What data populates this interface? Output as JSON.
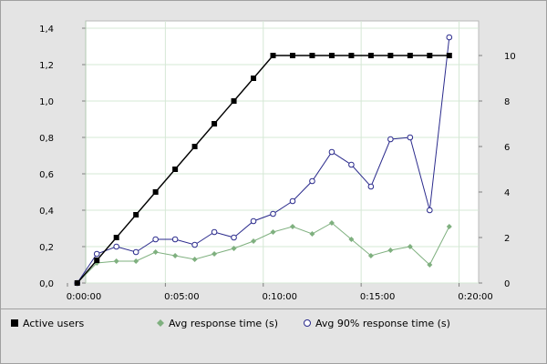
{
  "chart_data": {
    "type": "line",
    "title": "",
    "xlabel": "",
    "ylabel": "",
    "xlim": [
      0,
      1260
    ],
    "ylim": [
      0,
      1.4
    ],
    "y2lim": [
      0,
      10
    ],
    "grid": true,
    "legend_position": "bottom",
    "x_ticks": [
      {
        "value": 0,
        "label": "0:00:00"
      },
      {
        "value": 300,
        "label": "0:05:00"
      },
      {
        "value": 600,
        "label": "0:10:00"
      },
      {
        "value": 900,
        "label": "0:15:00"
      },
      {
        "value": 1200,
        "label": "0:20:00"
      }
    ],
    "y_ticks": [
      {
        "value": 0.0,
        "label": "0,0"
      },
      {
        "value": 0.2,
        "label": "0,2"
      },
      {
        "value": 0.4,
        "label": "0,4"
      },
      {
        "value": 0.6,
        "label": "0,6"
      },
      {
        "value": 0.8,
        "label": "0,8"
      },
      {
        "value": 1.0,
        "label": "1,0"
      },
      {
        "value": 1.2,
        "label": "1,2"
      },
      {
        "value": 1.4,
        "label": "1,4"
      }
    ],
    "y2_ticks": [
      {
        "value": 0,
        "label": "0"
      },
      {
        "value": 2,
        "label": "2"
      },
      {
        "value": 4,
        "label": "4"
      },
      {
        "value": 6,
        "label": "6"
      },
      {
        "value": 8,
        "label": "8"
      },
      {
        "value": 10,
        "label": "10"
      }
    ],
    "x": [
      30,
      90,
      150,
      210,
      270,
      330,
      390,
      450,
      510,
      570,
      630,
      690,
      750,
      810,
      870,
      930,
      990,
      1050,
      1110,
      1170
    ],
    "series": [
      {
        "name": "Active users",
        "axis": "right",
        "marker": "filled-square",
        "color": "#000000",
        "values": [
          0,
          1,
          2,
          3,
          4,
          5,
          6,
          7,
          8,
          9,
          10,
          10,
          10,
          10,
          10,
          10,
          10,
          10,
          10,
          10
        ]
      },
      {
        "name": "Avg response time (s)",
        "axis": "left",
        "marker": "filled-diamond",
        "color": "#7fb07f",
        "values": [
          0.0,
          0.11,
          0.12,
          0.12,
          0.17,
          0.15,
          0.13,
          0.16,
          0.19,
          0.23,
          0.28,
          0.31,
          0.27,
          0.33,
          0.24,
          0.15,
          0.18,
          0.2,
          0.1,
          0.31
        ]
      },
      {
        "name": "Avg 90% response time (s)",
        "axis": "left",
        "marker": "open-circle",
        "color": "#2a2a8c",
        "values": [
          0.0,
          0.16,
          0.2,
          0.17,
          0.24,
          0.24,
          0.21,
          0.28,
          0.25,
          0.34,
          0.38,
          0.45,
          0.56,
          0.72,
          0.65,
          0.53,
          0.79,
          0.8,
          0.4,
          1.35
        ]
      }
    ]
  },
  "legend": {
    "items": [
      {
        "label": "Active users",
        "marker": "filled-square",
        "color": "#000000"
      },
      {
        "label": "Avg response time (s)",
        "marker": "filled-diamond",
        "color": "#7fb07f"
      },
      {
        "label": "Avg 90% response time (s)",
        "marker": "open-circle",
        "color": "#2a2a8c"
      }
    ]
  }
}
